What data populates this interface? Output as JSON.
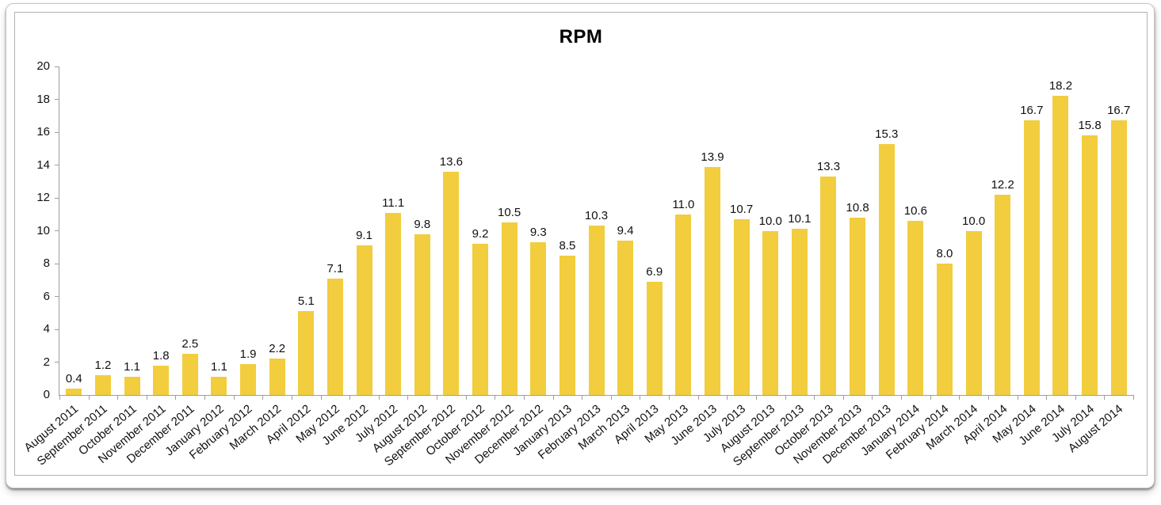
{
  "chart_data": {
    "type": "bar",
    "title": "RPM",
    "xlabel": "",
    "ylabel": "",
    "ylim": [
      0,
      20
    ],
    "yticks": [
      0,
      2,
      4,
      6,
      8,
      10,
      12,
      14,
      16,
      18,
      20
    ],
    "grid": false,
    "legend_position": "none",
    "bar_color": "#F2CD3E",
    "value_label_decimals": 1,
    "categories": [
      "August 2011",
      "September 2011",
      "October 2011",
      "November 2011",
      "December 2011",
      "January 2012",
      "February 2012",
      "March 2012",
      "April 2012",
      "May 2012",
      "June 2012",
      "July 2012",
      "August 2012",
      "September 2012",
      "October 2012",
      "November 2012",
      "December 2012",
      "January 2013",
      "February 2013",
      "March 2013",
      "April 2013",
      "May 2013",
      "June 2013",
      "July 2013",
      "August 2013",
      "September 2013",
      "October 2013",
      "November 2013",
      "December 2013",
      "January 2014",
      "February 2014",
      "March 2014",
      "April 2014",
      "May 2014",
      "June 2014",
      "July 2014",
      "August 2014"
    ],
    "values": [
      0.4,
      1.2,
      1.1,
      1.8,
      2.5,
      1.1,
      1.9,
      2.2,
      5.1,
      7.1,
      9.1,
      11.1,
      9.8,
      13.6,
      9.2,
      10.5,
      9.3,
      8.5,
      10.3,
      9.4,
      6.9,
      11.0,
      13.9,
      10.7,
      10.0,
      10.1,
      13.3,
      10.8,
      15.3,
      10.6,
      8.0,
      10.0,
      12.2,
      16.7,
      18.2,
      15.8,
      16.7
    ]
  }
}
